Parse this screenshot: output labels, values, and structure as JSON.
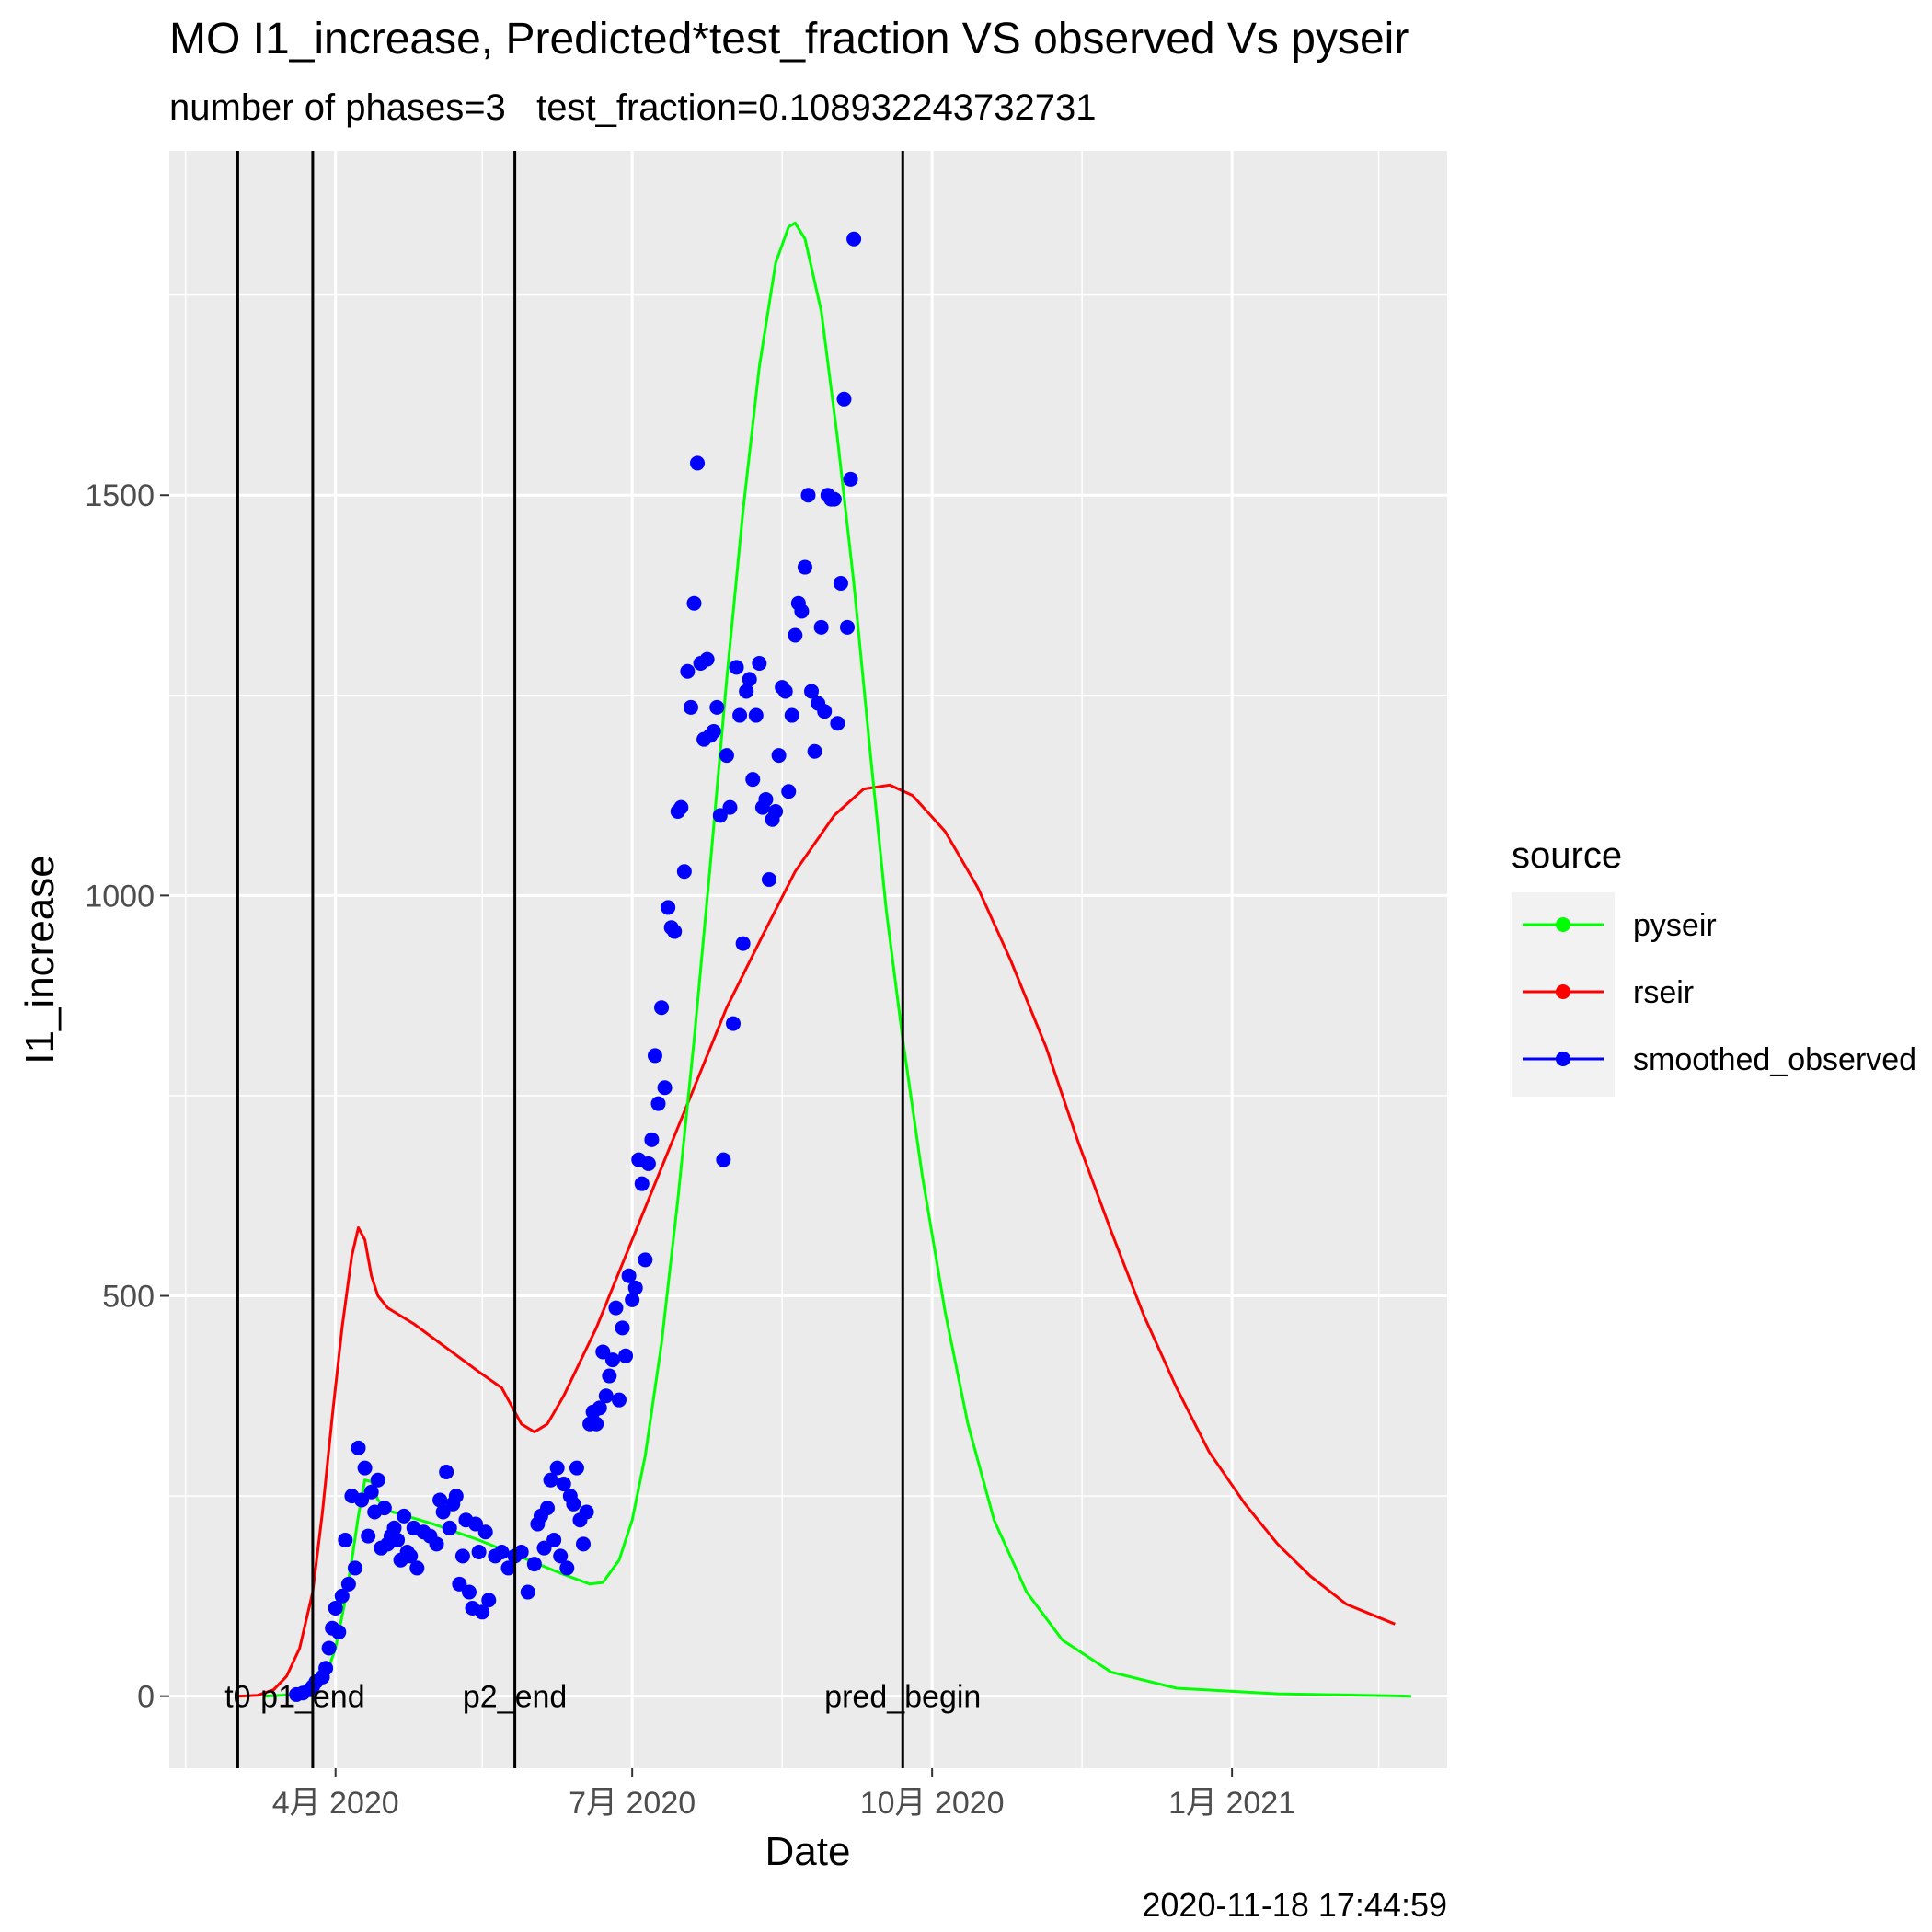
{
  "chart_data": {
    "type": "line",
    "title": "MO I1_increase, Predicted*test_fraction VS observed Vs pyseir",
    "subtitle": "number of phases=3   test_fraction=0.108932243732731",
    "xlabel": "Date",
    "ylabel": "I1_increase",
    "caption": "2020-11-18 17:44:59",
    "x_range": [
      "2020-02-10",
      "2021-03-08"
    ],
    "y_range": [
      -90,
      1930
    ],
    "x_ticks": [
      {
        "date": "2020-04-01",
        "label": "4月 2020"
      },
      {
        "date": "2020-07-01",
        "label": "7月 2020"
      },
      {
        "date": "2020-10-01",
        "label": "10月 2020"
      },
      {
        "date": "2021-01-01",
        "label": "1月 2021"
      }
    ],
    "x_minor_ticks": [
      "2020-02-15",
      "2020-05-16",
      "2020-08-16",
      "2020-11-16",
      "2021-02-15"
    ],
    "y_ticks": [
      0,
      500,
      1000,
      1500
    ],
    "y_minor_ticks": [
      250,
      750,
      1250,
      1750
    ],
    "grid": true,
    "legend": {
      "title": "source",
      "placement": "right",
      "entries": [
        {
          "name": "pyseir",
          "color": "#00ff00"
        },
        {
          "name": "rseir",
          "color": "#ff0000"
        },
        {
          "name": "smoothed_observed",
          "color": "#0000ff"
        }
      ]
    },
    "vlines": [
      {
        "date": "2020-03-02",
        "label": "t0"
      },
      {
        "date": "2020-03-25",
        "label": "p1_end"
      },
      {
        "date": "2020-05-26",
        "label": "p2_end"
      },
      {
        "date": "2020-09-22",
        "label": "pred_begin"
      }
    ],
    "series": [
      {
        "name": "rseir",
        "color": "#ff0000",
        "points": [
          [
            "2020-03-02",
            0
          ],
          [
            "2020-03-08",
            1
          ],
          [
            "2020-03-13",
            8
          ],
          [
            "2020-03-17",
            25
          ],
          [
            "2020-03-21",
            60
          ],
          [
            "2020-03-25",
            130
          ],
          [
            "2020-03-28",
            230
          ],
          [
            "2020-03-31",
            350
          ],
          [
            "2020-04-03",
            460
          ],
          [
            "2020-04-06",
            550
          ],
          [
            "2020-04-08",
            585
          ],
          [
            "2020-04-10",
            570
          ],
          [
            "2020-04-12",
            525
          ],
          [
            "2020-04-14",
            500
          ],
          [
            "2020-04-17",
            485
          ],
          [
            "2020-04-25",
            465
          ],
          [
            "2020-05-05",
            435
          ],
          [
            "2020-05-15",
            405
          ],
          [
            "2020-05-22",
            385
          ],
          [
            "2020-05-28",
            340
          ],
          [
            "2020-06-01",
            330
          ],
          [
            "2020-06-05",
            340
          ],
          [
            "2020-06-10",
            375
          ],
          [
            "2020-06-20",
            460
          ],
          [
            "2020-06-30",
            560
          ],
          [
            "2020-07-10",
            660
          ],
          [
            "2020-07-20",
            760
          ],
          [
            "2020-07-30",
            860
          ],
          [
            "2020-08-10",
            950
          ],
          [
            "2020-08-20",
            1030
          ],
          [
            "2020-09-01",
            1100
          ],
          [
            "2020-09-10",
            1133
          ],
          [
            "2020-09-18",
            1138
          ],
          [
            "2020-09-25",
            1125
          ],
          [
            "2020-10-05",
            1080
          ],
          [
            "2020-10-15",
            1010
          ],
          [
            "2020-10-25",
            920
          ],
          [
            "2020-11-05",
            810
          ],
          [
            "2020-11-15",
            690
          ],
          [
            "2020-11-25",
            580
          ],
          [
            "2020-12-05",
            475
          ],
          [
            "2020-12-15",
            385
          ],
          [
            "2020-12-25",
            305
          ],
          [
            "2021-01-05",
            240
          ],
          [
            "2021-01-15",
            190
          ],
          [
            "2021-01-25",
            150
          ],
          [
            "2021-02-05",
            115
          ],
          [
            "2021-02-20",
            90
          ]
        ]
      },
      {
        "name": "pyseir",
        "color": "#00ff00",
        "points": [
          [
            "2020-03-10",
            0
          ],
          [
            "2020-03-20",
            2
          ],
          [
            "2020-03-25",
            8
          ],
          [
            "2020-03-29",
            25
          ],
          [
            "2020-04-01",
            60
          ],
          [
            "2020-04-04",
            120
          ],
          [
            "2020-04-06",
            170
          ],
          [
            "2020-04-08",
            225
          ],
          [
            "2020-04-10",
            270
          ],
          [
            "2020-04-12",
            268
          ],
          [
            "2020-04-14",
            245
          ],
          [
            "2020-04-17",
            232
          ],
          [
            "2020-05-01",
            215
          ],
          [
            "2020-05-15",
            195
          ],
          [
            "2020-05-29",
            172
          ],
          [
            "2020-06-10",
            152
          ],
          [
            "2020-06-18",
            140
          ],
          [
            "2020-06-22",
            142
          ],
          [
            "2020-06-27",
            170
          ],
          [
            "2020-07-01",
            220
          ],
          [
            "2020-07-05",
            300
          ],
          [
            "2020-07-10",
            440
          ],
          [
            "2020-07-15",
            620
          ],
          [
            "2020-07-20",
            820
          ],
          [
            "2020-07-25",
            1040
          ],
          [
            "2020-07-30",
            1270
          ],
          [
            "2020-08-04",
            1480
          ],
          [
            "2020-08-09",
            1660
          ],
          [
            "2020-08-14",
            1790
          ],
          [
            "2020-08-18",
            1835
          ],
          [
            "2020-08-20",
            1840
          ],
          [
            "2020-08-23",
            1820
          ],
          [
            "2020-08-28",
            1730
          ],
          [
            "2020-09-02",
            1570
          ],
          [
            "2020-09-07",
            1390
          ],
          [
            "2020-09-12",
            1180
          ],
          [
            "2020-09-17",
            980
          ],
          [
            "2020-09-22",
            820
          ],
          [
            "2020-09-28",
            650
          ],
          [
            "2020-10-05",
            480
          ],
          [
            "2020-10-12",
            340
          ],
          [
            "2020-10-20",
            220
          ],
          [
            "2020-10-30",
            130
          ],
          [
            "2020-11-10",
            70
          ],
          [
            "2020-11-25",
            30
          ],
          [
            "2020-12-15",
            10
          ],
          [
            "2021-01-15",
            3
          ],
          [
            "2021-02-25",
            0
          ]
        ]
      },
      {
        "name": "smoothed_observed",
        "color": "#0000ff",
        "type": "scatter",
        "points": [
          [
            "2020-03-20",
            2
          ],
          [
            "2020-03-22",
            4
          ],
          [
            "2020-03-24",
            8
          ],
          [
            "2020-03-25",
            12
          ],
          [
            "2020-03-26",
            18
          ],
          [
            "2020-03-28",
            24
          ],
          [
            "2020-03-29",
            35
          ],
          [
            "2020-03-30",
            60
          ],
          [
            "2020-03-31",
            85
          ],
          [
            "2020-04-01",
            110
          ],
          [
            "2020-04-02",
            80
          ],
          [
            "2020-04-03",
            125
          ],
          [
            "2020-04-04",
            195
          ],
          [
            "2020-04-05",
            140
          ],
          [
            "2020-04-06",
            250
          ],
          [
            "2020-04-07",
            160
          ],
          [
            "2020-04-08",
            310
          ],
          [
            "2020-04-09",
            245
          ],
          [
            "2020-04-10",
            285
          ],
          [
            "2020-04-11",
            200
          ],
          [
            "2020-04-12",
            255
          ],
          [
            "2020-04-13",
            230
          ],
          [
            "2020-04-14",
            270
          ],
          [
            "2020-04-15",
            185
          ],
          [
            "2020-04-16",
            235
          ],
          [
            "2020-04-17",
            190
          ],
          [
            "2020-04-18",
            200
          ],
          [
            "2020-04-19",
            210
          ],
          [
            "2020-04-20",
            195
          ],
          [
            "2020-04-21",
            170
          ],
          [
            "2020-04-22",
            225
          ],
          [
            "2020-04-23",
            180
          ],
          [
            "2020-04-24",
            175
          ],
          [
            "2020-04-25",
            210
          ],
          [
            "2020-04-26",
            160
          ],
          [
            "2020-04-28",
            205
          ],
          [
            "2020-04-30",
            200
          ],
          [
            "2020-05-02",
            190
          ],
          [
            "2020-05-03",
            245
          ],
          [
            "2020-05-04",
            230
          ],
          [
            "2020-05-05",
            280
          ],
          [
            "2020-05-06",
            210
          ],
          [
            "2020-05-07",
            240
          ],
          [
            "2020-05-08",
            250
          ],
          [
            "2020-05-09",
            140
          ],
          [
            "2020-05-10",
            175
          ],
          [
            "2020-05-11",
            220
          ],
          [
            "2020-05-12",
            130
          ],
          [
            "2020-05-13",
            110
          ],
          [
            "2020-05-14",
            215
          ],
          [
            "2020-05-15",
            180
          ],
          [
            "2020-05-16",
            105
          ],
          [
            "2020-05-17",
            205
          ],
          [
            "2020-05-18",
            120
          ],
          [
            "2020-05-20",
            175
          ],
          [
            "2020-05-22",
            180
          ],
          [
            "2020-05-24",
            160
          ],
          [
            "2020-05-26",
            175
          ],
          [
            "2020-05-28",
            180
          ],
          [
            "2020-05-30",
            130
          ],
          [
            "2020-06-01",
            165
          ],
          [
            "2020-06-02",
            215
          ],
          [
            "2020-06-03",
            225
          ],
          [
            "2020-06-04",
            185
          ],
          [
            "2020-06-05",
            235
          ],
          [
            "2020-06-06",
            270
          ],
          [
            "2020-06-07",
            195
          ],
          [
            "2020-06-08",
            285
          ],
          [
            "2020-06-09",
            175
          ],
          [
            "2020-06-10",
            265
          ],
          [
            "2020-06-11",
            160
          ],
          [
            "2020-06-12",
            250
          ],
          [
            "2020-06-13",
            240
          ],
          [
            "2020-06-14",
            285
          ],
          [
            "2020-06-15",
            220
          ],
          [
            "2020-06-16",
            190
          ],
          [
            "2020-06-17",
            230
          ],
          [
            "2020-06-18",
            340
          ],
          [
            "2020-06-19",
            355
          ],
          [
            "2020-06-20",
            340
          ],
          [
            "2020-06-21",
            360
          ],
          [
            "2020-06-22",
            430
          ],
          [
            "2020-06-23",
            375
          ],
          [
            "2020-06-24",
            400
          ],
          [
            "2020-06-25",
            420
          ],
          [
            "2020-06-26",
            485
          ],
          [
            "2020-06-27",
            370
          ],
          [
            "2020-06-28",
            460
          ],
          [
            "2020-06-29",
            425
          ],
          [
            "2020-06-30",
            525
          ],
          [
            "2020-07-01",
            495
          ],
          [
            "2020-07-02",
            510
          ],
          [
            "2020-07-03",
            670
          ],
          [
            "2020-07-04",
            640
          ],
          [
            "2020-07-05",
            545
          ],
          [
            "2020-07-06",
            665
          ],
          [
            "2020-07-07",
            695
          ],
          [
            "2020-07-08",
            800
          ],
          [
            "2020-07-09",
            740
          ],
          [
            "2020-07-10",
            860
          ],
          [
            "2020-07-11",
            760
          ],
          [
            "2020-07-12",
            985
          ],
          [
            "2020-07-13",
            960
          ],
          [
            "2020-07-14",
            955
          ],
          [
            "2020-07-15",
            1105
          ],
          [
            "2020-07-16",
            1110
          ],
          [
            "2020-07-17",
            1030
          ],
          [
            "2020-07-18",
            1280
          ],
          [
            "2020-07-19",
            1235
          ],
          [
            "2020-07-20",
            1365
          ],
          [
            "2020-07-21",
            1540
          ],
          [
            "2020-07-22",
            1290
          ],
          [
            "2020-07-23",
            1195
          ],
          [
            "2020-07-24",
            1295
          ],
          [
            "2020-07-25",
            1200
          ],
          [
            "2020-07-26",
            1205
          ],
          [
            "2020-07-27",
            1235
          ],
          [
            "2020-07-28",
            1100
          ],
          [
            "2020-07-29",
            670
          ],
          [
            "2020-07-30",
            1175
          ],
          [
            "2020-07-31",
            1110
          ],
          [
            "2020-08-01",
            840
          ],
          [
            "2020-08-02",
            1285
          ],
          [
            "2020-08-03",
            1225
          ],
          [
            "2020-08-04",
            940
          ],
          [
            "2020-08-05",
            1255
          ],
          [
            "2020-08-06",
            1270
          ],
          [
            "2020-08-07",
            1145
          ],
          [
            "2020-08-08",
            1225
          ],
          [
            "2020-08-09",
            1290
          ],
          [
            "2020-08-10",
            1110
          ],
          [
            "2020-08-11",
            1120
          ],
          [
            "2020-08-12",
            1020
          ],
          [
            "2020-08-13",
            1095
          ],
          [
            "2020-08-14",
            1105
          ],
          [
            "2020-08-15",
            1175
          ],
          [
            "2020-08-16",
            1260
          ],
          [
            "2020-08-17",
            1255
          ],
          [
            "2020-08-18",
            1130
          ],
          [
            "2020-08-19",
            1225
          ],
          [
            "2020-08-20",
            1325
          ],
          [
            "2020-08-21",
            1365
          ],
          [
            "2020-08-22",
            1355
          ],
          [
            "2020-08-23",
            1410
          ],
          [
            "2020-08-24",
            1500
          ],
          [
            "2020-08-25",
            1255
          ],
          [
            "2020-08-26",
            1180
          ],
          [
            "2020-08-27",
            1240
          ],
          [
            "2020-08-28",
            1335
          ],
          [
            "2020-08-29",
            1230
          ],
          [
            "2020-08-30",
            1500
          ],
          [
            "2020-08-31",
            1495
          ],
          [
            "2020-09-01",
            1495
          ],
          [
            "2020-09-02",
            1215
          ],
          [
            "2020-09-03",
            1390
          ],
          [
            "2020-09-04",
            1620
          ],
          [
            "2020-09-05",
            1335
          ],
          [
            "2020-09-06",
            1520
          ],
          [
            "2020-09-07",
            1820
          ]
        ]
      }
    ]
  }
}
